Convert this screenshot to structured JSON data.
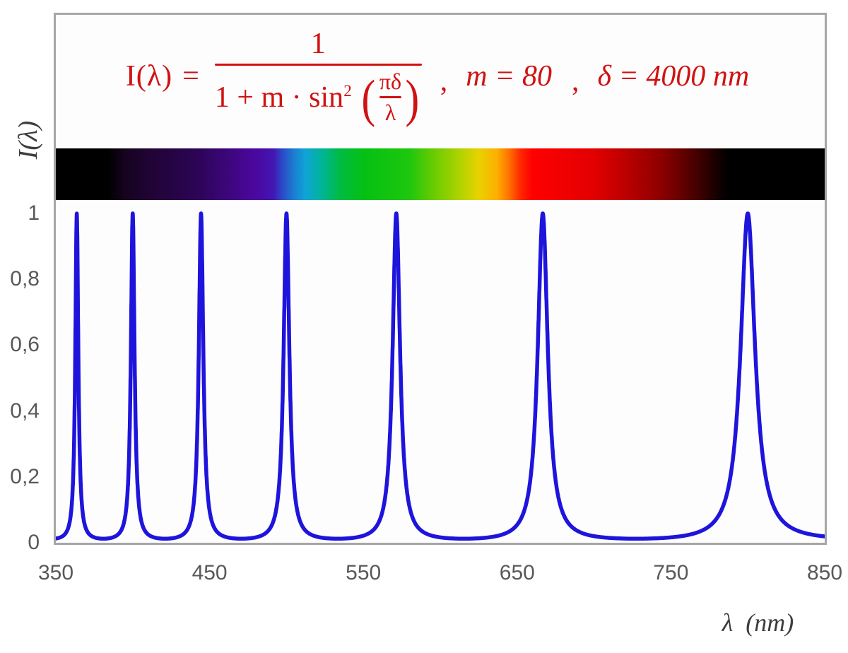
{
  "style": {
    "background": "#ffffff",
    "plot_background": "#fdfdfd",
    "frame_border_color": "#a6a6a6",
    "formula_color": "#d01212",
    "tick_label_color": "#595959",
    "axis_title_color": "#3d3d3d"
  },
  "formula": {
    "lhs": "I(λ)",
    "equals": "=",
    "numerator": "1",
    "denominator_prefix": "1 + m · sin",
    "denominator_sup": "2",
    "open_paren": "(",
    "inner_numerator": "πδ",
    "inner_denominator": "λ",
    "close_paren": ")",
    "comma1": ",",
    "param_m": "m = 80",
    "comma2": ",",
    "param_delta": "δ = 4000 nm"
  },
  "axes": {
    "y_title": "I(λ)",
    "x_title": "λ  (nm)"
  },
  "chart_data": {
    "type": "line",
    "title": "I(λ) = 1 / (1 + m·sin²(πδ/λ)) , m = 80 , δ = 4000 nm",
    "xlabel": "λ (nm)",
    "ylabel": "I(λ)",
    "x_range": [
      350,
      850
    ],
    "y_range": [
      0,
      1
    ],
    "x_ticks": [
      350,
      450,
      550,
      650,
      750,
      850
    ],
    "x_tick_labels": [
      "350",
      "450",
      "550",
      "650",
      "750",
      "850"
    ],
    "y_tick_values": [
      0,
      0.2,
      0.4,
      0.6,
      0.8,
      1
    ],
    "y_tick_labels": [
      "0",
      "0,2",
      "0,4",
      "0,6",
      "0,8",
      "1"
    ],
    "grid": false,
    "legend": "none",
    "parameters": {
      "m": 80,
      "delta_nm": 4000
    },
    "curve_color": "#1e14dc",
    "curve_stroke_px": 5.5,
    "samples_per_nm": 20,
    "peak_wavelengths_nm": [
      363.6,
      400.0,
      444.4,
      500.0,
      571.4,
      666.7,
      800.0
    ],
    "peak_value": 1.0,
    "baseline_min_value": 0.0123,
    "spectrum_bar": {
      "description": "visible-spectrum color strip aligned to the 350-850 nm axis, black outside ~383-780 nm",
      "stops": [
        [
          0,
          "#000000"
        ],
        [
          6.7,
          "#000000"
        ],
        [
          9,
          "#16031f"
        ],
        [
          13,
          "#220439"
        ],
        [
          18,
          "#2b0453"
        ],
        [
          22,
          "#3b0677"
        ],
        [
          26,
          "#4c07a0"
        ],
        [
          28.3,
          "#4316b2"
        ],
        [
          29.5,
          "#2b4bca"
        ],
        [
          31,
          "#1b7fd0"
        ],
        [
          32.4,
          "#10a2d8"
        ],
        [
          34.5,
          "#00b49b"
        ],
        [
          36.9,
          "#00bb45"
        ],
        [
          40,
          "#04c013"
        ],
        [
          46,
          "#1ec70d"
        ],
        [
          49,
          "#66cb02"
        ],
        [
          52.5,
          "#aed300"
        ],
        [
          55,
          "#e8d200"
        ],
        [
          57.4,
          "#fdae00"
        ],
        [
          58.9,
          "#ff7300"
        ],
        [
          60.5,
          "#ff2600"
        ],
        [
          62,
          "#fe0000"
        ],
        [
          70,
          "#e20000"
        ],
        [
          74.5,
          "#b80000"
        ],
        [
          79,
          "#8a0000"
        ],
        [
          83.5,
          "#420000"
        ],
        [
          86.1,
          "#150000"
        ],
        [
          87.4,
          "#000000"
        ],
        [
          100,
          "#000000"
        ]
      ]
    }
  }
}
